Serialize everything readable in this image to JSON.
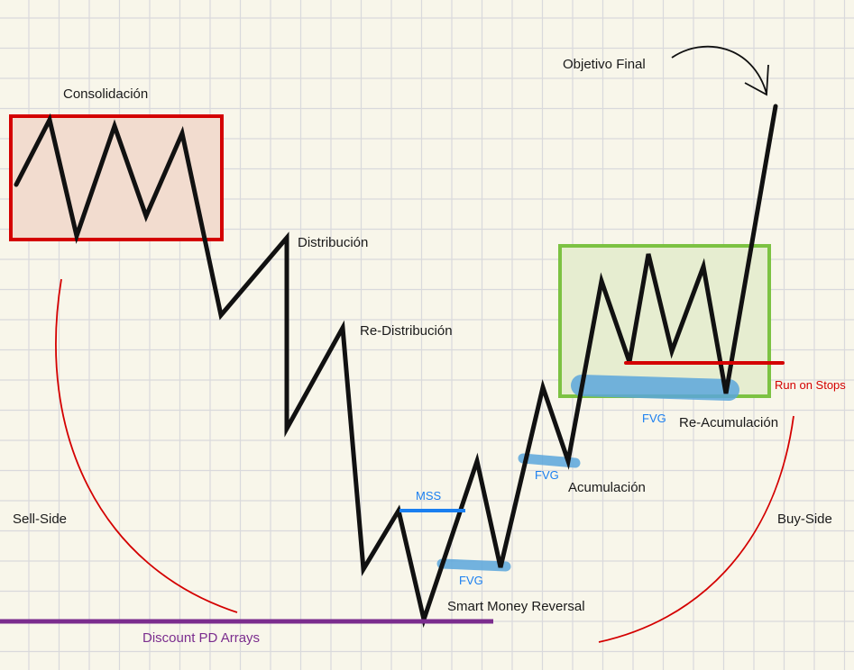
{
  "labels": {
    "consolidacion": "Consolidación",
    "distribucion": "Distribución",
    "redistribucion": "Re-Distribución",
    "mss": "MSS",
    "fvg1": "FVG",
    "smart_money_reversal": "Smart Money Reversal",
    "discount_pd_arrays": "Discount PD Arrays",
    "sell_side": "Sell-Side",
    "fvg2": "FVG",
    "acumulacion": "Acumulación",
    "fvg3": "FVG",
    "reacumulacion": "Re-Acumulación",
    "run_on_stops": "Run on Stops",
    "buy_side": "Buy-Side",
    "objetivo_final": "Objetivo Final"
  },
  "colors": {
    "background": "#f8f6ea",
    "grid": "#d9d9dc",
    "price": "#111111",
    "consolidation_box": "#d40000",
    "reaccumulation_box": "#7cc242",
    "fvg": "#5aa6dc",
    "mss": "#1a7ff0",
    "discount": "#7b2d8e",
    "liquidity": "#d40000"
  }
}
